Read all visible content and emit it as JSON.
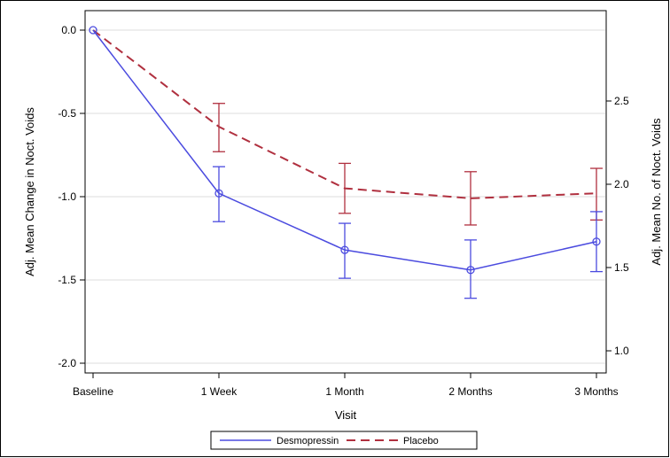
{
  "chart_data": {
    "type": "line",
    "title": "",
    "categories": [
      "Baseline",
      "1 Week",
      "1 Month",
      "2 Months",
      "3 Months"
    ],
    "xlabel": "Visit",
    "ylabel_left": "Adj. Mean Change in Noct. Voids",
    "ylabel_right": "Adj. Mean No. of Noct. Voids",
    "ylim_left": [
      -2.0,
      0.0
    ],
    "yticks_left": [
      "0.0",
      "-0.5",
      "-1.0",
      "-1.5",
      "-2.0"
    ],
    "ylim_right": [
      1.0,
      2.5
    ],
    "yticks_right": [
      "2.5",
      "2.0",
      "1.5",
      "1.0"
    ],
    "grid": "horizontal",
    "legend_position": "bottom",
    "series": [
      {
        "name": "Desmopressin",
        "color": "#4b4bdf",
        "line_style": "solid",
        "marker": "circle",
        "values": [
          0.0,
          -0.98,
          -1.32,
          -1.44,
          -1.27
        ],
        "err_low": [
          0.0,
          -1.15,
          -1.49,
          -1.61,
          -1.45
        ],
        "err_high": [
          0.0,
          -0.82,
          -1.16,
          -1.26,
          -1.09
        ]
      },
      {
        "name": "Placebo",
        "color": "#b0303f",
        "line_style": "dashed",
        "marker": "none",
        "values": [
          0.0,
          -0.58,
          -0.95,
          -1.01,
          -0.98
        ],
        "err_low": [
          0.0,
          -0.73,
          -1.1,
          -1.17,
          -1.14
        ],
        "err_high": [
          0.0,
          -0.44,
          -0.8,
          -0.85,
          -0.83
        ]
      }
    ]
  }
}
